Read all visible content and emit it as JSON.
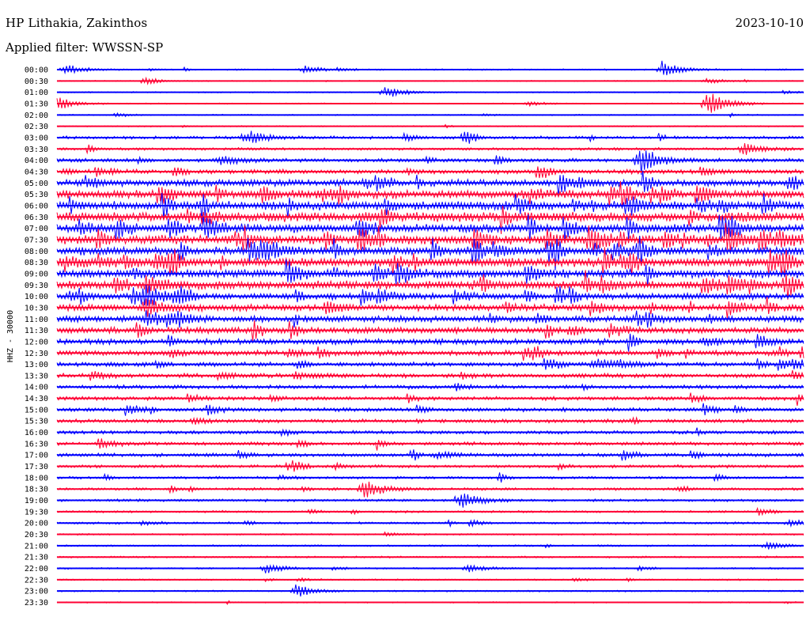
{
  "header": {
    "station": "HP Lithakia, Zakinthos",
    "date": "2023-10-10",
    "filter": "Applied filter: WWSSN-SP"
  },
  "chart_data": {
    "type": "line",
    "title": "HP Lithakia, Zakinthos",
    "ylabel": "HHZ - 30000",
    "trace_colors": [
      "#0000ff",
      "#ff0033"
    ],
    "categories": [
      "00:00",
      "00:30",
      "01:00",
      "01:30",
      "02:00",
      "02:30",
      "03:00",
      "03:30",
      "04:00",
      "04:30",
      "05:00",
      "05:30",
      "06:00",
      "06:30",
      "07:00",
      "07:30",
      "08:00",
      "08:30",
      "09:00",
      "09:30",
      "10:00",
      "10:30",
      "11:00",
      "11:30",
      "12:00",
      "12:30",
      "13:00",
      "13:30",
      "14:00",
      "14:30",
      "15:00",
      "15:30",
      "16:00",
      "16:30",
      "17:00",
      "17:30",
      "18:00",
      "18:30",
      "19:00",
      "19:30",
      "20:00",
      "20:30",
      "21:00",
      "21:30",
      "22:00",
      "22:30",
      "23:00",
      "23:30"
    ],
    "series": [
      {
        "values": [
          0.35,
          0.25,
          0.3,
          0.3,
          0.3,
          0.3,
          0.7,
          0.6,
          0.9,
          1.0,
          1.6,
          1.9,
          2.0,
          2.2,
          2.0,
          2.1,
          1.9,
          2.1,
          2.0,
          2.0,
          1.5,
          1.5,
          1.5,
          1.5,
          1.3,
          1.2,
          1.0,
          1.0,
          0.9,
          0.9,
          0.9,
          0.85,
          0.8,
          0.8,
          0.8,
          0.7,
          0.6,
          0.6,
          0.6,
          0.5,
          0.5,
          0.4,
          0.4,
          0.4,
          0.4,
          0.35,
          0.35,
          0.3
        ]
      }
    ],
    "events": [
      {
        "row": "00:00",
        "t": 0.01,
        "amp": 3
      },
      {
        "row": "00:00",
        "t": 0.33,
        "amp": 2
      },
      {
        "row": "00:00",
        "t": 0.81,
        "amp": 5
      },
      {
        "row": "00:30",
        "t": 0.12,
        "amp": 1.5
      },
      {
        "row": "00:30",
        "t": 0.87,
        "amp": 1.5
      },
      {
        "row": "01:00",
        "t": 0.44,
        "amp": 3
      },
      {
        "row": "01:30",
        "t": 0.0,
        "amp": 3
      },
      {
        "row": "01:30",
        "t": 0.63,
        "amp": 1.2
      },
      {
        "row": "01:30",
        "t": 0.87,
        "amp": 8
      },
      {
        "row": "03:00",
        "t": 0.26,
        "amp": 3
      },
      {
        "row": "03:30",
        "t": 0.92,
        "amp": 4
      },
      {
        "row": "04:00",
        "t": 0.78,
        "amp": 9
      },
      {
        "row": "04:00",
        "t": 0.22,
        "amp": 2.5
      },
      {
        "row": "09:30",
        "t": 0.12,
        "amp": 4
      },
      {
        "row": "10:00",
        "t": 0.12,
        "amp": 5
      },
      {
        "row": "10:30",
        "t": 0.12,
        "amp": 5
      },
      {
        "row": "11:00",
        "t": 0.12,
        "amp": 4
      },
      {
        "row": "13:00",
        "t": 0.72,
        "amp": 2.5
      },
      {
        "row": "17:00",
        "t": 0.51,
        "amp": 2
      },
      {
        "row": "18:30",
        "t": 0.41,
        "amp": 6
      },
      {
        "row": "19:00",
        "t": 0.54,
        "amp": 5
      },
      {
        "row": "20:00",
        "t": 0.98,
        "amp": 2
      },
      {
        "row": "21:00",
        "t": 0.95,
        "amp": 2
      },
      {
        "row": "22:00",
        "t": 0.28,
        "amp": 3
      },
      {
        "row": "22:00",
        "t": 0.55,
        "amp": 2
      },
      {
        "row": "23:00",
        "t": 0.32,
        "amp": 4
      }
    ]
  }
}
